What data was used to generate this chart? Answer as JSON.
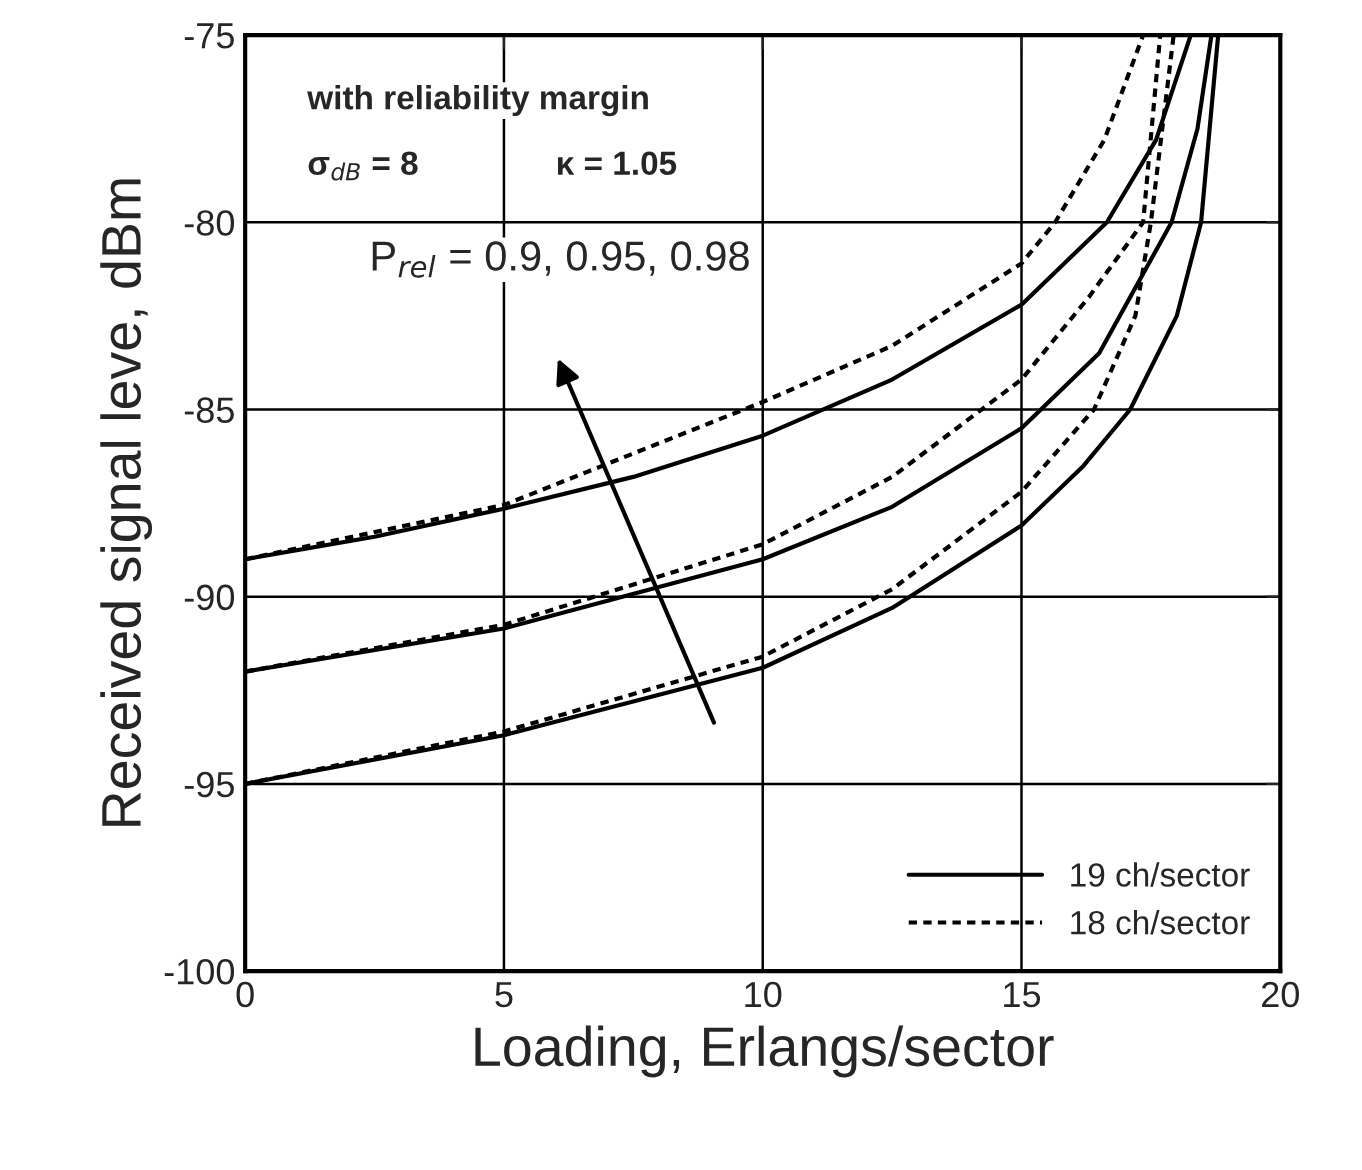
{
  "chart_data": {
    "type": "line",
    "xlabel": "Loading, Erlangs/sector",
    "ylabel": "Received signal leve, dBm",
    "xlim": [
      0,
      20
    ],
    "ylim": [
      -100,
      -75
    ],
    "xticks": [
      0,
      5,
      10,
      15,
      20
    ],
    "yticks": [
      -100,
      -95,
      -90,
      -85,
      -80,
      -75
    ],
    "grid": true,
    "legend": "bottom right",
    "annotations": [
      "with reliability margin",
      "σ$_{dB}$ = 8",
      "κ = 1.05",
      "P$_{rel}$ = 0.9, 0.95, 0.98"
    ],
    "series": [
      {
        "name": "19 ch/sector",
        "color": "#000000",
        "line_style": "solid",
        "x": [
          0,
          2.5,
          5,
          7.5,
          10,
          12.5,
          15,
          16.65,
          17.6,
          18.27
        ],
        "values": [
          -89,
          -88.4,
          -87.65,
          -86.8,
          -85.7,
          -84.2,
          -82.2,
          -80,
          -77.8,
          -75
        ]
      },
      {
        "color": "#000000",
        "line_style": "solid",
        "x": [
          0,
          5,
          10,
          12.5,
          15,
          16.5,
          17.9,
          18.4,
          18.67
        ],
        "values": [
          -92,
          -90.85,
          -89,
          -87.6,
          -85.5,
          -83.5,
          -80,
          -77.5,
          -75
        ]
      },
      {
        "color": "#000000",
        "line_style": "solid",
        "x": [
          0,
          5,
          10,
          12.5,
          15,
          16.2,
          17.1,
          18,
          18.47,
          18.8
        ],
        "values": [
          -95,
          -93.7,
          -91.9,
          -90.3,
          -88.1,
          -86.5,
          -85,
          -82.5,
          -80,
          -75
        ]
      },
      {
        "name": "18 ch/sector",
        "color": "#000000",
        "line_style": "dotted",
        "x": [
          0,
          5,
          10,
          12.5,
          15,
          15.65,
          16.6,
          17.35
        ],
        "values": [
          -89,
          -87.55,
          -84.8,
          -83.3,
          -81.1,
          -80,
          -77.8,
          -75
        ]
      },
      {
        "color": "#000000",
        "line_style": "dotted",
        "x": [
          0,
          5,
          10,
          12.5,
          15,
          16.3,
          17.35,
          17.68
        ],
        "values": [
          -92,
          -90.75,
          -88.6,
          -86.8,
          -84.2,
          -82,
          -80,
          -75
        ]
      },
      {
        "color": "#000000",
        "line_style": "dotted",
        "x": [
          0,
          5,
          10,
          12.5,
          15,
          16.4,
          17.2,
          17.5,
          17.94
        ],
        "values": [
          -95,
          -93.6,
          -91.6,
          -89.8,
          -87.2,
          -85,
          -82.5,
          -80,
          -75
        ]
      }
    ]
  }
}
